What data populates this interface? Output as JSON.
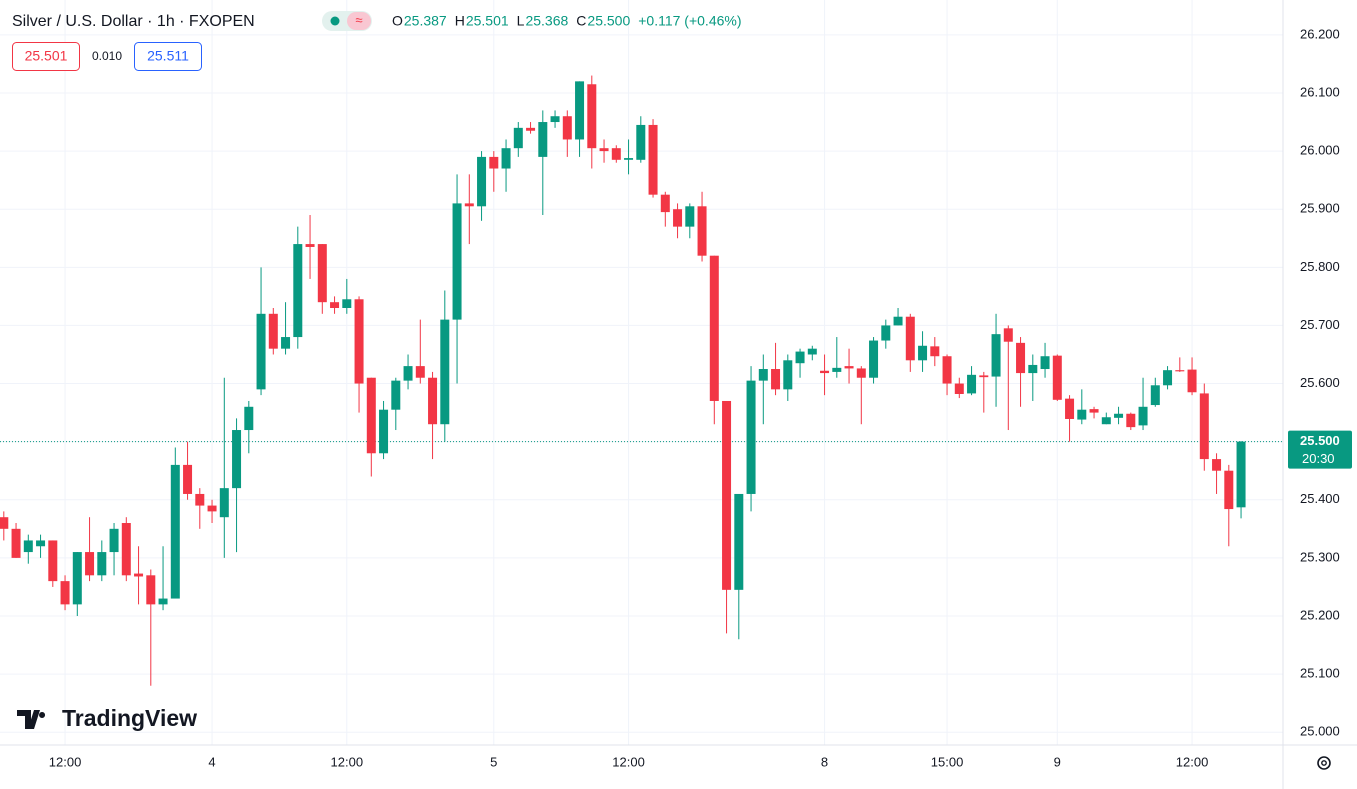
{
  "chart_data": {
    "type": "candlestick",
    "title": "Silver / U.S. Dollar · 1h · FXOPEN",
    "legend_values": [
      {
        "label": "O",
        "value": "25.387"
      },
      {
        "label": "H",
        "value": "25.501"
      },
      {
        "label": "L",
        "value": "25.368"
      },
      {
        "label": "C",
        "value": "25.500"
      }
    ],
    "change": "+0.117 (+0.46%)",
    "bid": "25.501",
    "spread": "0.010",
    "ask": "25.511",
    "last_price": {
      "value": 25.5,
      "label": "25.500"
    },
    "countdown": "20:30",
    "watermark": "TradingView",
    "up_color": "#089981",
    "down_color": "#f23645",
    "categories": [
      null,
      null,
      null,
      null,
      null,
      "12:00",
      null,
      null,
      null,
      null,
      null,
      null,
      null,
      null,
      null,
      null,
      null,
      "4",
      null,
      null,
      null,
      null,
      null,
      null,
      null,
      null,
      null,
      null,
      "12:00",
      null,
      null,
      null,
      null,
      null,
      null,
      null,
      null,
      null,
      null,
      null,
      "5",
      null,
      null,
      null,
      null,
      null,
      null,
      null,
      null,
      null,
      null,
      "12:00",
      null,
      null,
      null,
      null,
      null,
      null,
      null,
      null,
      null,
      null,
      null,
      null,
      null,
      null,
      null,
      "8",
      null,
      null,
      null,
      null,
      null,
      null,
      null,
      null,
      null,
      "15:00",
      null,
      null,
      null,
      null,
      null,
      null,
      null,
      null,
      "9",
      null,
      null,
      null,
      null,
      null,
      null,
      null,
      null,
      null,
      null,
      "12:00",
      null,
      null,
      null,
      null
    ],
    "open": [
      25.37,
      25.35,
      25.31,
      25.32,
      25.33,
      25.26,
      25.22,
      25.31,
      25.27,
      25.31,
      25.36,
      25.273,
      25.27,
      25.22,
      25.23,
      25.46,
      25.41,
      25.39,
      25.37,
      25.42,
      25.52,
      25.59,
      25.72,
      25.66,
      25.68,
      25.84,
      25.84,
      25.74,
      25.73,
      25.745,
      25.61,
      25.48,
      25.555,
      25.605,
      25.63,
      25.61,
      25.53,
      25.71,
      25.91,
      25.905,
      25.99,
      25.97,
      26.005,
      26.04,
      25.99,
      26.05,
      26.06,
      26.02,
      26.115,
      26.005,
      26.005,
      25.985,
      25.985,
      26.045,
      25.925,
      25.9,
      25.87,
      25.905,
      25.82,
      25.57,
      25.245,
      25.41,
      25.605,
      25.625,
      25.59,
      25.635,
      25.65,
      25.622,
      25.62,
      25.63,
      25.626,
      25.61,
      25.674,
      25.7,
      25.715,
      25.64,
      25.664,
      25.647,
      25.6,
      25.583,
      25.614,
      25.612,
      25.695,
      25.67,
      25.618,
      25.625,
      25.648,
      25.574,
      25.538,
      25.556,
      25.53,
      25.541,
      25.548,
      25.528,
      25.563,
      25.597,
      25.623,
      25.624,
      25.583,
      25.47,
      25.45,
      25.387
    ],
    "high": [
      25.38,
      25.36,
      25.34,
      25.34,
      25.33,
      25.27,
      25.31,
      25.37,
      25.33,
      25.36,
      25.37,
      25.32,
      25.28,
      25.32,
      25.49,
      25.5,
      25.42,
      25.4,
      25.61,
      25.54,
      25.57,
      25.8,
      25.73,
      25.74,
      25.87,
      25.89,
      25.84,
      25.75,
      25.78,
      25.75,
      25.61,
      25.57,
      25.61,
      25.65,
      25.71,
      25.62,
      25.76,
      25.96,
      25.96,
      26.0,
      26.0,
      26.02,
      26.05,
      26.05,
      26.07,
      26.07,
      26.07,
      26.12,
      26.13,
      26.02,
      26.01,
      26.02,
      26.06,
      26.055,
      25.93,
      25.91,
      25.91,
      25.93,
      25.82,
      25.57,
      25.41,
      25.63,
      25.65,
      25.67,
      25.65,
      25.66,
      25.665,
      25.65,
      25.68,
      25.66,
      25.63,
      25.68,
      25.71,
      25.73,
      25.72,
      25.69,
      25.68,
      25.65,
      25.61,
      25.63,
      25.62,
      25.72,
      25.7,
      25.68,
      25.65,
      25.67,
      25.65,
      25.58,
      25.59,
      25.56,
      25.55,
      25.56,
      25.55,
      25.61,
      25.61,
      25.63,
      25.645,
      25.645,
      25.6,
      25.48,
      25.46,
      25.501
    ],
    "low": [
      25.33,
      25.3,
      25.29,
      25.3,
      25.25,
      25.21,
      25.2,
      25.26,
      25.26,
      25.27,
      25.26,
      25.22,
      25.08,
      25.21,
      25.23,
      25.4,
      25.35,
      25.36,
      25.3,
      25.31,
      25.48,
      25.58,
      25.65,
      25.65,
      25.66,
      25.78,
      25.72,
      25.72,
      25.72,
      25.55,
      25.44,
      25.47,
      25.52,
      25.59,
      25.6,
      25.47,
      25.5,
      25.6,
      25.84,
      25.88,
      25.93,
      25.93,
      25.99,
      26.03,
      25.89,
      26.04,
      25.99,
      25.99,
      25.97,
      25.98,
      25.98,
      25.96,
      25.98,
      25.92,
      25.87,
      25.85,
      25.85,
      25.81,
      25.53,
      25.17,
      25.16,
      25.38,
      25.53,
      25.58,
      25.57,
      25.61,
      25.64,
      25.58,
      25.61,
      25.6,
      25.53,
      25.6,
      25.66,
      25.7,
      25.62,
      25.62,
      25.63,
      25.58,
      25.575,
      25.58,
      25.55,
      25.56,
      25.52,
      25.56,
      25.57,
      25.61,
      25.57,
      25.5,
      25.53,
      25.54,
      25.53,
      25.53,
      25.52,
      25.52,
      25.56,
      25.59,
      25.62,
      25.58,
      25.45,
      25.41,
      25.32,
      25.368
    ],
    "close": [
      25.35,
      25.3,
      25.33,
      25.33,
      25.26,
      25.22,
      25.31,
      25.27,
      25.31,
      25.35,
      25.27,
      25.268,
      25.22,
      25.23,
      25.46,
      25.41,
      25.39,
      25.38,
      25.42,
      25.52,
      25.56,
      25.72,
      25.66,
      25.68,
      25.84,
      25.835,
      25.74,
      25.73,
      25.745,
      25.6,
      25.48,
      25.555,
      25.605,
      25.63,
      25.61,
      25.53,
      25.71,
      25.91,
      25.905,
      25.99,
      25.97,
      26.005,
      26.04,
      26.035,
      26.05,
      26.06,
      26.02,
      26.12,
      26.005,
      26.0,
      25.985,
      25.988,
      26.045,
      25.925,
      25.895,
      25.87,
      25.905,
      25.82,
      25.57,
      25.245,
      25.41,
      25.605,
      25.625,
      25.59,
      25.64,
      25.655,
      25.66,
      25.618,
      25.627,
      25.626,
      25.61,
      25.674,
      25.7,
      25.715,
      25.64,
      25.665,
      25.647,
      25.6,
      25.582,
      25.615,
      25.611,
      25.685,
      25.672,
      25.618,
      25.632,
      25.647,
      25.572,
      25.539,
      25.555,
      25.55,
      25.542,
      25.548,
      25.525,
      25.56,
      25.597,
      25.623,
      25.621,
      25.585,
      25.47,
      25.45,
      25.384,
      25.5
    ],
    "ylim": [
      24.978,
      26.26
    ],
    "yticks": [
      {
        "value": 25.0,
        "label": "25.000"
      },
      {
        "value": 25.1,
        "label": "25.100"
      },
      {
        "value": 25.2,
        "label": "25.200"
      },
      {
        "value": 25.3,
        "label": "25.300"
      },
      {
        "value": 25.4,
        "label": "25.400"
      },
      {
        "value": 25.5,
        "label": "25.500"
      },
      {
        "value": 25.6,
        "label": "25.600"
      },
      {
        "value": 25.7,
        "label": "25.700"
      },
      {
        "value": 25.8,
        "label": "25.800"
      },
      {
        "value": 25.9,
        "label": "25.900"
      },
      {
        "value": 26.0,
        "label": "26.000"
      },
      {
        "value": 26.1,
        "label": "26.100"
      },
      {
        "value": 26.2,
        "label": "26.200"
      }
    ],
    "grid": true
  }
}
